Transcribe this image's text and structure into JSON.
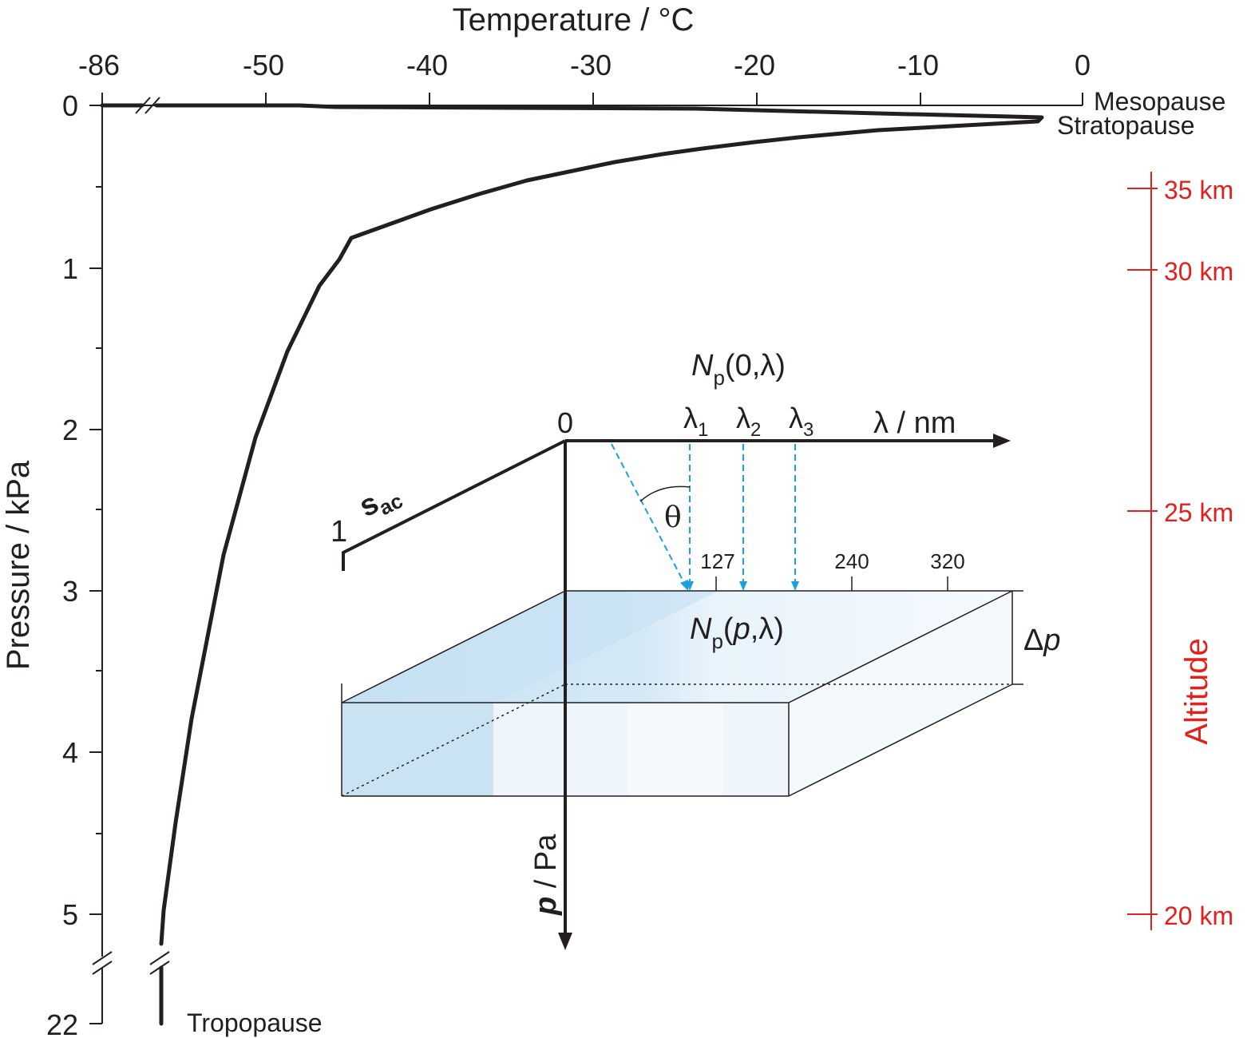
{
  "title": "Temperature / °C",
  "axes": {
    "x_ticks": [
      "-86",
      "-50",
      "-40",
      "-30",
      "-20",
      "-10",
      "0"
    ],
    "y_label": "Pressure / kPa",
    "y_ticks": [
      "0",
      "1",
      "2",
      "3",
      "4",
      "5",
      "22"
    ],
    "altitude_label": "Altitude",
    "altitude_ticks": [
      "35 km",
      "30 km",
      "25 km",
      "20 km"
    ]
  },
  "layers": {
    "mesopause": "Mesopause",
    "stratopause": "Stratopause",
    "tropopause": "Tropopause"
  },
  "inset": {
    "np_top": {
      "N": "N",
      "sub": "p",
      "args": "(0,λ)"
    },
    "np_mid": {
      "N": "N",
      "sub": "p",
      "open": "(",
      "p": "p",
      "close": ",λ)"
    },
    "origin": "0",
    "lambda_axis": "λ / nm",
    "lambdas": [
      {
        "sym": "λ",
        "sub": "1"
      },
      {
        "sym": "λ",
        "sub": "2"
      },
      {
        "sym": "λ",
        "sub": "3"
      }
    ],
    "theta": "θ",
    "sac": {
      "main": "s",
      "sub": "ac"
    },
    "one": "1",
    "wavelengths": [
      "127",
      "240",
      "320"
    ],
    "delta": "Δ",
    "delta_p": "p",
    "p_axis_p": "p",
    "p_axis_unit": " / Pa"
  },
  "colors": {
    "curve": "#231f20",
    "altitude": "#e3201b",
    "rays": "#1ba1dc",
    "slab_dark": "#c9e3f3",
    "slab_light": "#eef6fc"
  }
}
